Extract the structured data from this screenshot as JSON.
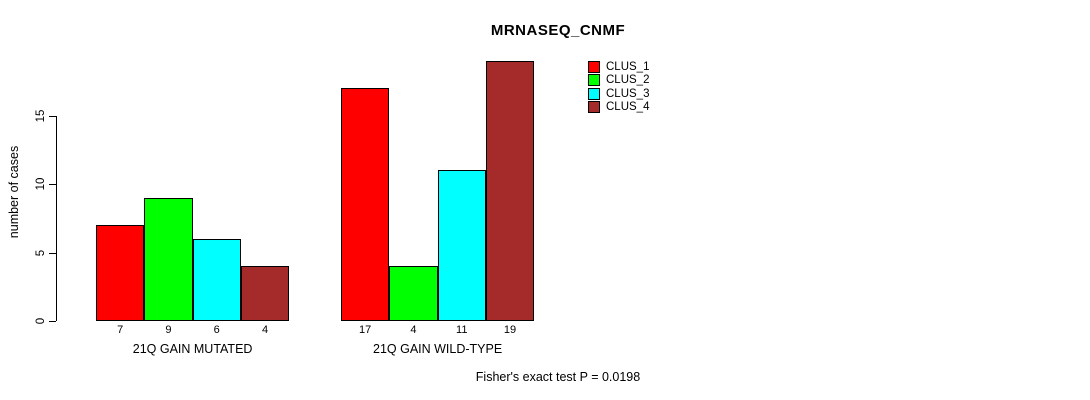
{
  "title": "MRNASEQ_CNMF",
  "ylabel": "number of cases",
  "footer": "Fisher's exact test P = 0.0198",
  "chart_data": {
    "type": "bar",
    "title": "MRNASEQ_CNMF",
    "xlabel": "",
    "ylabel": "number of cases",
    "categories": [
      "21Q GAIN MUTATED",
      "21Q GAIN WILD-TYPE"
    ],
    "series": [
      {
        "name": "CLUS_1",
        "color": "#ff0000",
        "values": [
          7,
          17
        ]
      },
      {
        "name": "CLUS_2",
        "color": "#00ff00",
        "values": [
          9,
          4
        ]
      },
      {
        "name": "CLUS_3",
        "color": "#00ffff",
        "values": [
          6,
          11
        ]
      },
      {
        "name": "CLUS_4",
        "color": "#a52a2a",
        "values": [
          4,
          19
        ]
      }
    ],
    "bar_value_labels": [
      [
        "7",
        "9",
        "6",
        "4"
      ],
      [
        "17",
        "4",
        "11",
        "19"
      ]
    ],
    "yticks": [
      0,
      5,
      10,
      15
    ],
    "ylim": [
      0,
      19
    ],
    "grid": false,
    "legend_position": "top-right",
    "legend_entries": [
      "CLUS_1",
      "CLUS_2",
      "CLUS_3",
      "CLUS_4"
    ],
    "annotation": "Fisher's exact test P = 0.0198"
  }
}
